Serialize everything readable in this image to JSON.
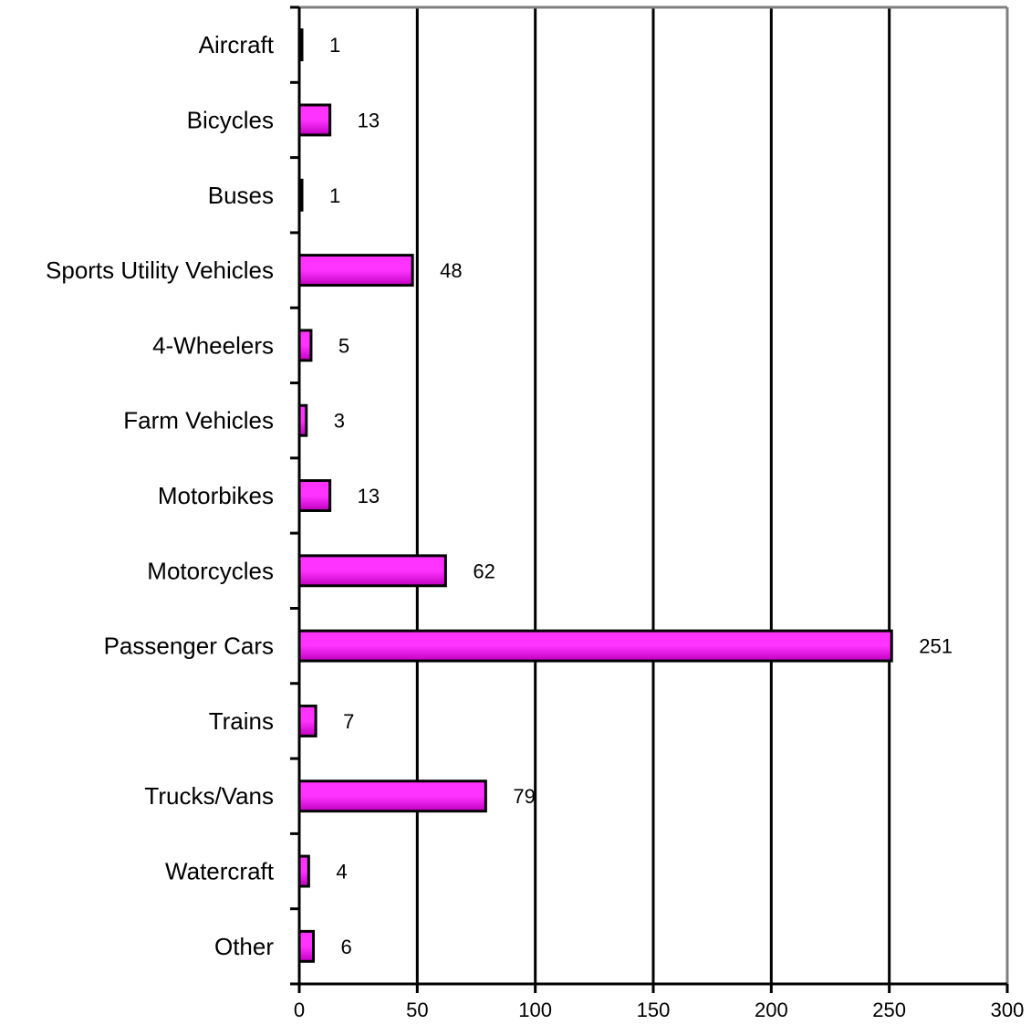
{
  "chart_data": {
    "type": "bar",
    "orientation": "horizontal",
    "title": "",
    "xlabel": "",
    "ylabel": "",
    "categories": [
      "Aircraft",
      "Bicycles",
      "Buses",
      "Sports Utility Vehicles",
      "4-Wheelers",
      "Farm Vehicles",
      "Motorbikes",
      "Motorcycles",
      "Passenger Cars",
      "Trains",
      "Trucks/Vans",
      "Watercraft",
      "Other"
    ],
    "values": [
      1,
      13,
      1,
      48,
      5,
      3,
      13,
      62,
      251,
      7,
      79,
      4,
      6
    ],
    "data_labels": [
      "1",
      "13",
      "1",
      "48",
      "5",
      "3",
      "13",
      "62",
      "251",
      "7",
      "79",
      "4",
      "6"
    ],
    "xlim": [
      0,
      300
    ],
    "xticks": [
      0,
      50,
      100,
      150,
      200,
      250,
      300
    ],
    "xtick_labels": [
      "0",
      "50",
      "100",
      "150",
      "200",
      "250",
      "300"
    ],
    "grid": "vertical",
    "legend": "none",
    "colors": {
      "bar_fill_top": "#FF33FF",
      "bar_fill_bottom": "#C000C0",
      "bar_stroke": "#000000",
      "gridline": "#000000",
      "frame": "#808080"
    }
  }
}
